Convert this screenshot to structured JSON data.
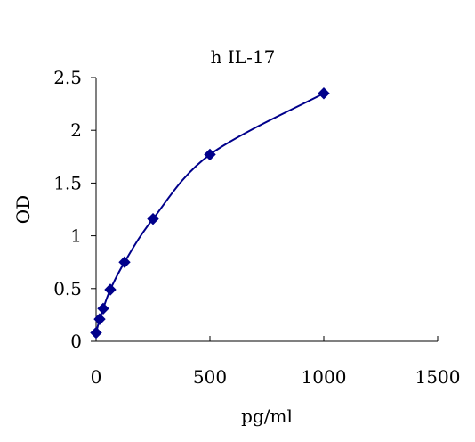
{
  "chart_data": {
    "type": "scatter",
    "title": "h IL-17",
    "xlabel": "pg/ml",
    "ylabel": "OD",
    "xlim": [
      0,
      1500
    ],
    "ylim": [
      0,
      2.5
    ],
    "xticks": [
      0,
      500,
      1000,
      1500
    ],
    "xtick_labels": [
      "0",
      "500",
      "1000",
      "1500"
    ],
    "yticks": [
      0,
      0.5,
      1,
      1.5,
      2,
      2.5
    ],
    "ytick_labels": [
      "0",
      "0.5",
      "1",
      "1.5",
      "2",
      "2.5"
    ],
    "grid": false,
    "legend": "none",
    "line": "smooth",
    "series": [
      {
        "x": [
          0,
          15.6,
          31.25,
          62.5,
          125,
          250,
          500,
          1000
        ],
        "y": [
          0.08,
          0.21,
          0.31,
          0.49,
          0.75,
          1.16,
          1.77,
          2.35
        ],
        "color": "#00008B",
        "marker": "diamond"
      }
    ]
  }
}
